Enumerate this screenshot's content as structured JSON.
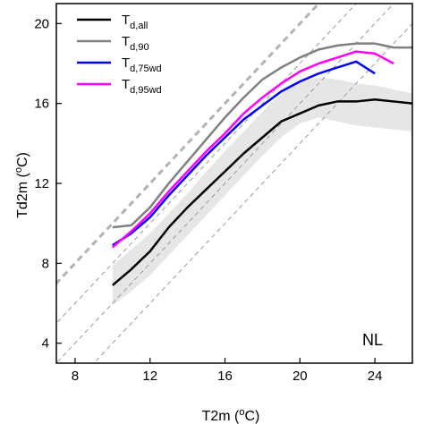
{
  "chart_data": {
    "type": "line",
    "title": "",
    "xlabel": "T2m (",
    "xlabel_sup": "o",
    "xlabel_tail": "C)",
    "ylabel": "Td2m (",
    "ylabel_sup": "o",
    "ylabel_tail": "C)",
    "xlim": [
      7,
      26
    ],
    "ylim": [
      3,
      21
    ],
    "xticks": [
      8,
      12,
      16,
      20,
      24
    ],
    "yticks": [
      4,
      8,
      12,
      16,
      20
    ],
    "xticklabels": [
      "8",
      "12",
      "16",
      "20",
      "24"
    ],
    "yticklabels": [
      "4",
      "8",
      "12",
      "16",
      "20"
    ],
    "grid": false,
    "legend_position": "top-left",
    "annotation": "NL",
    "x": [
      10,
      11,
      12,
      13,
      14,
      15,
      16,
      17,
      18,
      19,
      20,
      21,
      22,
      23,
      24,
      25,
      26
    ],
    "band": {
      "lower": [
        5.9,
        6.6,
        7.4,
        8.4,
        9.4,
        10.4,
        11.4,
        12.4,
        13.4,
        14.3,
        15.0,
        15.3,
        15.1,
        14.9,
        14.8,
        14.7,
        14.6
      ],
      "upper": [
        7.9,
        8.7,
        9.5,
        10.5,
        11.5,
        12.6,
        13.6,
        14.6,
        15.6,
        16.5,
        17.1,
        17.3,
        17.2,
        17.0,
        16.9,
        16.7,
        16.5
      ],
      "color": "#e6e6e6"
    },
    "series": [
      {
        "name": "T",
        "sub": "d,all",
        "color": "#000000",
        "x": [
          10,
          11,
          12,
          13,
          14,
          15,
          16,
          17,
          18,
          19,
          20,
          21,
          22,
          23,
          24,
          25,
          26
        ],
        "values": [
          6.9,
          7.7,
          8.6,
          9.8,
          10.8,
          11.7,
          12.6,
          13.5,
          14.3,
          15.1,
          15.5,
          15.9,
          16.1,
          16.1,
          16.2,
          16.1,
          16.0
        ]
      },
      {
        "name": "T",
        "sub": "d,90",
        "color": "#808080",
        "x": [
          10,
          11,
          12,
          13,
          14,
          15,
          16,
          17,
          18,
          19,
          20,
          21,
          22,
          23,
          24,
          25,
          26
        ],
        "values": [
          9.8,
          9.9,
          10.8,
          12.0,
          13.1,
          14.2,
          15.3,
          16.3,
          17.2,
          17.8,
          18.3,
          18.7,
          18.9,
          19.0,
          19.0,
          18.8,
          18.8
        ]
      },
      {
        "name": "T",
        "sub": "d,75wd",
        "color": "#0000ff",
        "x": [
          10,
          11,
          12,
          13,
          14,
          15,
          16,
          17,
          18,
          19,
          20,
          21,
          22,
          23,
          24
        ],
        "values": [
          8.9,
          9.5,
          10.3,
          11.4,
          12.4,
          13.4,
          14.3,
          15.2,
          15.9,
          16.6,
          17.1,
          17.5,
          17.8,
          18.1,
          17.5
        ]
      },
      {
        "name": "T",
        "sub": "d,95wd",
        "color": "#ff00ff",
        "x": [
          10,
          11,
          12,
          13,
          14,
          15,
          16,
          17,
          18,
          19,
          20,
          21,
          22,
          23,
          24,
          25
        ],
        "values": [
          8.8,
          9.6,
          10.5,
          11.6,
          12.6,
          13.6,
          14.5,
          15.5,
          16.3,
          17.0,
          17.6,
          18.0,
          18.3,
          18.6,
          18.5,
          18.0
        ]
      }
    ],
    "reference_lines": [
      {
        "intercept": 0,
        "style": "dashed",
        "color": "#b3b3b3",
        "width": 3
      },
      {
        "intercept": -2,
        "style": "dashed",
        "color": "#999999",
        "width": 1
      },
      {
        "intercept": -4,
        "style": "dashed",
        "color": "#999999",
        "width": 1
      },
      {
        "intercept": -6,
        "style": "dashed",
        "color": "#999999",
        "width": 1
      }
    ]
  }
}
